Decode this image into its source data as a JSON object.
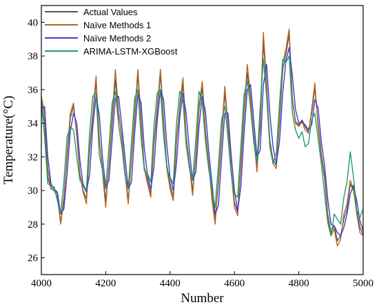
{
  "chart_data": {
    "type": "line",
    "title": "",
    "xlabel": "Number",
    "ylabel": "Temperature(°C)",
    "xlim": [
      4000,
      5000
    ],
    "ylim": [
      25,
      41
    ],
    "xticks": [
      4000,
      4200,
      4400,
      4600,
      4800,
      5000
    ],
    "yticks": [
      26,
      28,
      30,
      32,
      34,
      36,
      38,
      40
    ],
    "grid": false,
    "legend_position": "top-left",
    "series": [
      {
        "name": "Actual Values",
        "color": "#555555",
        "x": [
          4000,
          4010,
          4020,
          4030,
          4040,
          4050,
          4060,
          4070,
          4080,
          4090,
          4100,
          4110,
          4120,
          4130,
          4140,
          4150,
          4160,
          4170,
          4180,
          4190,
          4200,
          4210,
          4220,
          4230,
          4240,
          4250,
          4260,
          4270,
          4280,
          4290,
          4300,
          4310,
          4320,
          4330,
          4340,
          4350,
          4360,
          4370,
          4380,
          4390,
          4400,
          4410,
          4420,
          4430,
          4440,
          4450,
          4460,
          4470,
          4480,
          4490,
          4500,
          4510,
          4520,
          4530,
          4540,
          4550,
          4560,
          4570,
          4580,
          4590,
          4600,
          4610,
          4620,
          4630,
          4640,
          4650,
          4660,
          4670,
          4680,
          4690,
          4700,
          4710,
          4720,
          4730,
          4740,
          4750,
          4760,
          4770,
          4780,
          4790,
          4800,
          4810,
          4820,
          4830,
          4840,
          4850,
          4860,
          4870,
          4880,
          4890,
          4900,
          4910,
          4920,
          4930,
          4940,
          4950,
          4960,
          4970,
          4980,
          4990,
          5000
        ],
        "y": [
          35.3,
          34.0,
          30.8,
          30.1,
          30.0,
          29.6,
          28.1,
          29.6,
          32.0,
          34.3,
          35.0,
          33.3,
          31.0,
          30.0,
          29.5,
          32.4,
          34.4,
          36.5,
          33.0,
          31.3,
          29.4,
          31.5,
          34.0,
          36.6,
          34.5,
          33.2,
          31.2,
          29.4,
          31.8,
          34.3,
          36.9,
          34.0,
          31.4,
          30.6,
          29.8,
          32.7,
          34.7,
          36.9,
          34.0,
          31.5,
          30.4,
          29.6,
          32.9,
          34.9,
          36.3,
          33.3,
          31.6,
          30.0,
          32.0,
          34.8,
          36.1,
          33.5,
          31.7,
          29.8,
          28.2,
          30.4,
          33.0,
          35.8,
          33.8,
          31.3,
          29.3,
          28.7,
          31.4,
          34.5,
          37.0,
          35.5,
          33.4,
          31.3,
          33.8,
          38.8,
          36.2,
          33.0,
          31.8,
          31.5,
          34.0,
          37.2,
          38.1,
          39.3,
          35.5,
          34.1,
          33.9,
          34.2,
          33.8,
          33.5,
          34.6,
          36.1,
          34.0,
          32.2,
          30.9,
          28.6,
          27.5,
          27.9,
          27.0,
          27.3,
          28.3,
          28.9,
          30.4,
          30.0,
          28.8,
          27.8,
          27.4
        ]
      },
      {
        "name": "Naïve Methods 1",
        "color": "#b5651d",
        "x": [
          4000,
          4010,
          4020,
          4030,
          4040,
          4050,
          4060,
          4070,
          4080,
          4090,
          4100,
          4110,
          4120,
          4130,
          4140,
          4150,
          4160,
          4170,
          4180,
          4190,
          4200,
          4210,
          4220,
          4230,
          4240,
          4250,
          4260,
          4270,
          4280,
          4290,
          4300,
          4310,
          4320,
          4330,
          4340,
          4350,
          4360,
          4370,
          4380,
          4390,
          4400,
          4410,
          4420,
          4430,
          4440,
          4450,
          4460,
          4470,
          4480,
          4490,
          4500,
          4510,
          4520,
          4530,
          4540,
          4550,
          4560,
          4570,
          4580,
          4590,
          4600,
          4610,
          4620,
          4630,
          4640,
          4650,
          4660,
          4670,
          4680,
          4690,
          4700,
          4710,
          4720,
          4730,
          4740,
          4750,
          4760,
          4770,
          4780,
          4790,
          4800,
          4810,
          4820,
          4830,
          4840,
          4850,
          4860,
          4870,
          4880,
          4890,
          4900,
          4910,
          4920,
          4930,
          4940,
          4950,
          4960,
          4970,
          4980,
          4990,
          5000
        ],
        "y": [
          35.6,
          34.6,
          31.3,
          30.2,
          30.1,
          29.8,
          28.0,
          29.4,
          32.2,
          34.6,
          35.2,
          33.2,
          30.9,
          29.9,
          29.2,
          32.6,
          34.6,
          36.8,
          33.1,
          31.1,
          29.0,
          31.6,
          34.3,
          37.2,
          34.7,
          33.1,
          31.0,
          29.2,
          31.9,
          34.6,
          37.2,
          34.2,
          31.3,
          30.4,
          29.6,
          32.9,
          35.0,
          37.2,
          34.2,
          31.3,
          30.1,
          29.4,
          33.0,
          35.1,
          36.7,
          33.3,
          31.5,
          29.7,
          32.1,
          35.0,
          36.5,
          33.6,
          31.6,
          29.5,
          28.0,
          30.6,
          33.2,
          36.2,
          33.9,
          31.1,
          29.0,
          28.5,
          31.6,
          34.8,
          37.5,
          35.6,
          33.2,
          31.1,
          34.2,
          39.4,
          36.4,
          32.8,
          31.6,
          31.3,
          34.2,
          37.6,
          38.4,
          39.6,
          35.4,
          34.0,
          33.8,
          34.1,
          33.6,
          33.4,
          34.8,
          36.4,
          33.8,
          32.0,
          30.7,
          28.4,
          27.3,
          27.7,
          26.7,
          27.1,
          28.6,
          29.2,
          30.6,
          30.1,
          28.6,
          27.5,
          27.3
        ]
      },
      {
        "name": "Naïve Methods 2",
        "color": "#3b3bd6",
        "x": [
          4000,
          4010,
          4020,
          4030,
          4040,
          4050,
          4060,
          4070,
          4080,
          4090,
          4100,
          4110,
          4120,
          4130,
          4140,
          4150,
          4160,
          4170,
          4180,
          4190,
          4200,
          4210,
          4220,
          4230,
          4240,
          4250,
          4260,
          4270,
          4280,
          4290,
          4300,
          4310,
          4320,
          4330,
          4340,
          4350,
          4360,
          4370,
          4380,
          4390,
          4400,
          4410,
          4420,
          4430,
          4440,
          4450,
          4460,
          4470,
          4480,
          4490,
          4500,
          4510,
          4520,
          4530,
          4540,
          4550,
          4560,
          4570,
          4580,
          4590,
          4600,
          4610,
          4620,
          4630,
          4640,
          4650,
          4660,
          4670,
          4680,
          4690,
          4700,
          4710,
          4720,
          4730,
          4740,
          4750,
          4760,
          4770,
          4780,
          4790,
          4800,
          4810,
          4820,
          4830,
          4840,
          4850,
          4860,
          4870,
          4880,
          4890,
          4900,
          4910,
          4920,
          4930,
          4940,
          4950,
          4960,
          4970,
          4980,
          4990,
          5000
        ],
        "y": [
          34.8,
          35.0,
          32.0,
          30.4,
          30.1,
          29.9,
          28.6,
          28.9,
          31.0,
          33.5,
          34.6,
          34.0,
          31.8,
          30.3,
          29.9,
          31.0,
          33.8,
          35.6,
          34.5,
          32.0,
          30.2,
          30.6,
          33.0,
          35.5,
          35.6,
          33.8,
          32.0,
          30.1,
          30.5,
          33.4,
          35.8,
          35.2,
          32.5,
          30.9,
          30.1,
          31.4,
          34.1,
          36.0,
          35.4,
          32.7,
          30.8,
          30.0,
          31.6,
          34.3,
          35.8,
          34.6,
          32.4,
          30.6,
          31.1,
          33.8,
          35.6,
          34.7,
          32.4,
          30.5,
          28.6,
          29.1,
          31.9,
          34.6,
          34.6,
          32.1,
          30.0,
          28.8,
          30.2,
          33.4,
          36.0,
          36.3,
          34.2,
          32.0,
          32.4,
          36.3,
          37.5,
          34.6,
          32.6,
          31.6,
          32.9,
          35.8,
          37.7,
          38.5,
          36.8,
          34.8,
          34.0,
          34.1,
          33.9,
          33.6,
          33.9,
          35.4,
          34.9,
          32.9,
          31.5,
          29.5,
          28.0,
          27.9,
          27.5,
          27.3,
          27.8,
          28.6,
          29.8,
          30.3,
          29.4,
          28.2,
          27.6
        ]
      },
      {
        "name": "ARIMA-LSTM-XGBoost",
        "color": "#1e9a6e",
        "x": [
          4000,
          4010,
          4020,
          4030,
          4040,
          4050,
          4060,
          4070,
          4080,
          4090,
          4100,
          4110,
          4120,
          4130,
          4140,
          4150,
          4160,
          4170,
          4180,
          4190,
          4200,
          4210,
          4220,
          4230,
          4240,
          4250,
          4260,
          4270,
          4280,
          4290,
          4300,
          4310,
          4320,
          4330,
          4340,
          4350,
          4360,
          4370,
          4380,
          4390,
          4400,
          4410,
          4420,
          4430,
          4440,
          4450,
          4460,
          4470,
          4480,
          4490,
          4500,
          4510,
          4520,
          4530,
          4540,
          4550,
          4560,
          4570,
          4580,
          4590,
          4600,
          4610,
          4620,
          4630,
          4640,
          4650,
          4660,
          4670,
          4680,
          4690,
          4700,
          4710,
          4720,
          4730,
          4740,
          4750,
          4760,
          4770,
          4780,
          4790,
          4800,
          4810,
          4820,
          4830,
          4840,
          4850,
          4860,
          4870,
          4880,
          4890,
          4900,
          4910,
          4920,
          4930,
          4940,
          4950,
          4960,
          4970,
          4980,
          4990,
          5000
        ],
        "y": [
          35.0,
          33.2,
          30.4,
          30.3,
          30.2,
          29.4,
          28.6,
          30.5,
          33.2,
          33.8,
          33.6,
          32.0,
          30.6,
          30.4,
          30.0,
          33.5,
          35.6,
          35.8,
          32.1,
          31.2,
          30.1,
          32.6,
          35.2,
          35.9,
          33.9,
          32.6,
          30.9,
          30.1,
          32.9,
          35.5,
          36.0,
          33.1,
          31.2,
          31.0,
          30.5,
          33.8,
          35.8,
          36.0,
          33.2,
          31.3,
          30.8,
          30.4,
          34.0,
          35.9,
          35.4,
          32.7,
          31.3,
          30.6,
          33.1,
          35.9,
          35.3,
          32.9,
          31.3,
          30.1,
          29.0,
          31.5,
          34.2,
          35.0,
          33.1,
          31.0,
          29.8,
          29.6,
          32.6,
          35.7,
          36.5,
          34.9,
          32.9,
          31.6,
          35.0,
          37.8,
          35.6,
          32.6,
          31.6,
          32.2,
          35.2,
          37.8,
          37.6,
          38.0,
          34.6,
          33.6,
          33.1,
          33.5,
          32.6,
          32.8,
          34.2,
          34.6,
          33.1,
          31.6,
          29.8,
          28.1,
          27.3,
          28.6,
          28.3,
          28.0,
          29.6,
          30.5,
          32.3,
          30.8,
          28.8,
          28.4,
          28.9
        ]
      }
    ]
  }
}
